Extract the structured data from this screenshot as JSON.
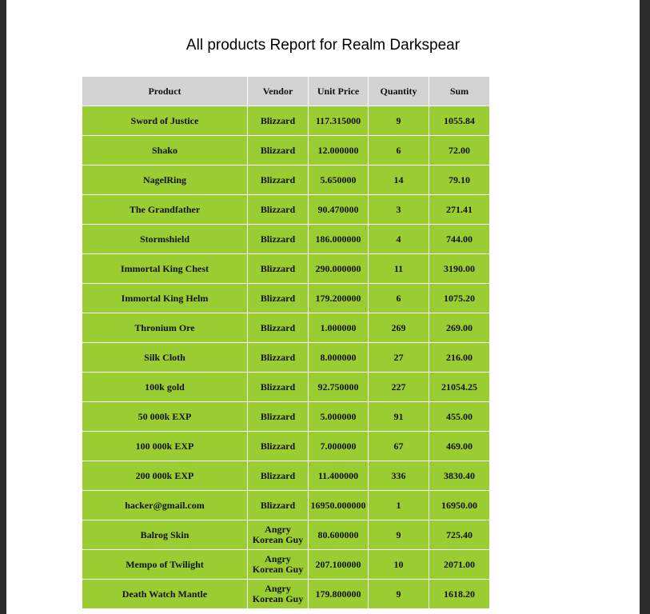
{
  "title": "All products Report for Realm Darkspear",
  "columns": [
    "Product",
    "Vendor",
    "Unit Price",
    "Quantity",
    "Sum"
  ],
  "rows": [
    {
      "product": "Sword of Justice",
      "vendor": "Blizzard",
      "price": "117.315000",
      "qty": "9",
      "sum": "1055.84"
    },
    {
      "product": "Shako",
      "vendor": "Blizzard",
      "price": "12.000000",
      "qty": "6",
      "sum": "72.00"
    },
    {
      "product": "NagelRing",
      "vendor": "Blizzard",
      "price": "5.650000",
      "qty": "14",
      "sum": "79.10"
    },
    {
      "product": "The Grandfather",
      "vendor": "Blizzard",
      "price": "90.470000",
      "qty": "3",
      "sum": "271.41"
    },
    {
      "product": "Stormshield",
      "vendor": "Blizzard",
      "price": "186.000000",
      "qty": "4",
      "sum": "744.00"
    },
    {
      "product": "Immortal King Chest",
      "vendor": "Blizzard",
      "price": "290.000000",
      "qty": "11",
      "sum": "3190.00"
    },
    {
      "product": "Immortal King Helm",
      "vendor": "Blizzard",
      "price": "179.200000",
      "qty": "6",
      "sum": "1075.20"
    },
    {
      "product": "Thronium Ore",
      "vendor": "Blizzard",
      "price": "1.000000",
      "qty": "269",
      "sum": "269.00"
    },
    {
      "product": "Silk Cloth",
      "vendor": "Blizzard",
      "price": "8.000000",
      "qty": "27",
      "sum": "216.00"
    },
    {
      "product": "100k gold",
      "vendor": "Blizzard",
      "price": "92.750000",
      "qty": "227",
      "sum": "21054.25"
    },
    {
      "product": "50 000k EXP",
      "vendor": "Blizzard",
      "price": "5.000000",
      "qty": "91",
      "sum": "455.00"
    },
    {
      "product": "100 000k EXP",
      "vendor": "Blizzard",
      "price": "7.000000",
      "qty": "67",
      "sum": "469.00"
    },
    {
      "product": "200 000k EXP",
      "vendor": "Blizzard",
      "price": "11.400000",
      "qty": "336",
      "sum": "3830.40"
    },
    {
      "product": "hacker@gmail.com",
      "vendor": "Blizzard",
      "price": "16950.000000",
      "qty": "1",
      "sum": "16950.00"
    },
    {
      "product": "Balrog Skin",
      "vendor": "Angry Korean Guy",
      "price": "80.600000",
      "qty": "9",
      "sum": "725.40"
    },
    {
      "product": "Mempo of Twilight",
      "vendor": "Angry Korean Guy",
      "price": "207.100000",
      "qty": "10",
      "sum": "2071.00"
    },
    {
      "product": "Death Watch Mantle",
      "vendor": "Angry Korean Guy",
      "price": "179.800000",
      "qty": "9",
      "sum": "1618.20"
    }
  ]
}
